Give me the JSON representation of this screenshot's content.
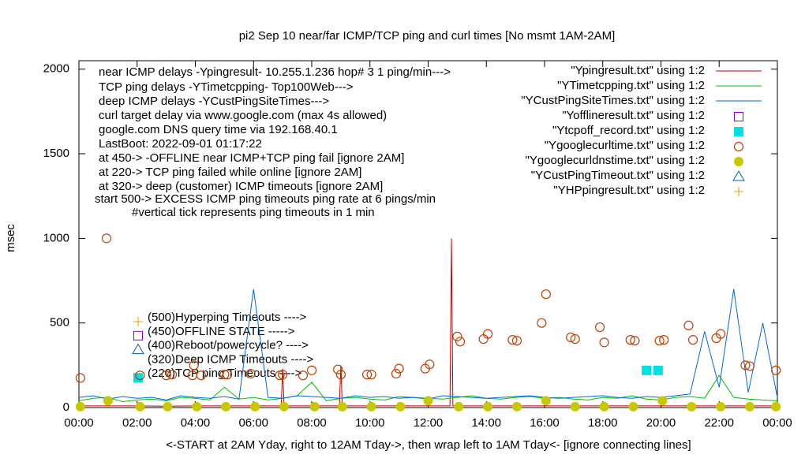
{
  "chart_data": {
    "type": "line",
    "title": "pi2 Sep 10  near/far ICMP/TCP ping and curl times [No msmt 1AM-2AM]",
    "ylabel": "msec",
    "xlabel": "<-START at 2AM Yday, right to 12AM Tday->, then wrap left to 1AM Tday<- [ignore connecting lines]",
    "xlim": [
      0,
      24
    ],
    "ylim": [
      0,
      2050
    ],
    "yticks": [
      0,
      500,
      1000,
      1500,
      2000
    ],
    "xticks": [
      {
        "value": 0,
        "label": "00:00"
      },
      {
        "value": 2,
        "label": "02:00"
      },
      {
        "value": 4,
        "label": "04:00"
      },
      {
        "value": 6,
        "label": "06:00"
      },
      {
        "value": 8,
        "label": "08:00"
      },
      {
        "value": 10,
        "label": "10:00"
      },
      {
        "value": 12,
        "label": "12:00"
      },
      {
        "value": 14,
        "label": "14:00"
      },
      {
        "value": 16,
        "label": "16:00"
      },
      {
        "value": 18,
        "label": "18:00"
      },
      {
        "value": 20,
        "label": "20:00"
      },
      {
        "value": 22,
        "label": "22:00"
      },
      {
        "value": 24,
        "label": "00:00"
      }
    ],
    "annotations": [
      "near ICMP delays -Ypingresult- 10.255.1.236 hop# 3 1 ping/min--->",
      "TCP ping delays -YTimetcpping- Top100Web--->",
      "deep ICMP delays -YCustPingSiteTimes--->",
      "curl target delay via www.google.com (max 4s allowed)",
      "google.com DNS query time via 192.168.40.1",
      "LastBoot: 2022-09-01 01:17:22",
      "at 450-> -OFFLINE near ICMP+TCP ping fail [ignore 2AM]",
      "at 220-> TCP ping failed while online [ignore 2AM]",
      "at 320-> deep (customer) ICMP timeouts [ignore 2AM]",
      "start 500-> EXCESS ICMP ping timeouts ping rate at 6 pings/min",
      "#vertical tick represents ping timeouts in 1 min"
    ],
    "key_notes": [
      {
        "label": "(500)Hyperping Timeouts ---->",
        "marker": "plus",
        "color": "#e5a000"
      },
      {
        "label": "(450)OFFLINE STATE ----->",
        "marker": "open-square",
        "color": "#9400d3"
      },
      {
        "label": "(400)Reboot/powercycle? ---->",
        "marker": "open-triangle",
        "color": "#0060ad"
      },
      {
        "label": "(320)Deep ICMP Timeouts ---->",
        "marker": "none",
        "color": "#0060ad"
      },
      {
        "label": "(220)TCP ping Timeouts ---->",
        "marker": "filled-square",
        "color": "#00e0e0"
      }
    ],
    "series": [
      {
        "name": "\"Ypingresult.txt\" using 1:2",
        "marker": "line",
        "color": "#c00000",
        "x": [
          0,
          1,
          2,
          3,
          4,
          5,
          6,
          6.95,
          7,
          7.05,
          8,
          8.95,
          9,
          9.05,
          10,
          11,
          12,
          12.75,
          12.8,
          12.85,
          13,
          14,
          15,
          16,
          17,
          18,
          19,
          20,
          21,
          22,
          23,
          24
        ],
        "values": [
          10,
          10,
          10,
          8,
          10,
          10,
          10,
          10,
          230,
          10,
          10,
          10,
          250,
          10,
          10,
          10,
          10,
          10,
          1000,
          10,
          10,
          10,
          10,
          10,
          10,
          10,
          10,
          10,
          10,
          10,
          10,
          10
        ]
      },
      {
        "name": "\"YTimetcpping.txt\" using 1:2",
        "marker": "line",
        "color": "#00c000",
        "x": [
          0,
          0.5,
          1,
          1.5,
          2,
          2.5,
          3,
          3.5,
          4,
          4.5,
          5,
          5.5,
          6,
          6.5,
          7,
          7.5,
          8,
          8.5,
          9,
          9.5,
          10,
          10.5,
          11,
          11.5,
          12,
          12.5,
          13,
          13.5,
          14,
          14.5,
          15,
          15.5,
          16,
          16.5,
          17,
          17.5,
          18,
          18.5,
          19,
          19.5,
          20,
          20.5,
          21,
          21.5,
          22,
          22.5,
          23,
          23.5,
          24
        ],
        "values": [
          40,
          55,
          60,
          35,
          45,
          50,
          40,
          60,
          55,
          45,
          120,
          50,
          60,
          45,
          55,
          70,
          150,
          40,
          55,
          60,
          50,
          45,
          65,
          60,
          55,
          50,
          60,
          70,
          55,
          50,
          60,
          65,
          55,
          60,
          50,
          45,
          60,
          55,
          70,
          50,
          45,
          60,
          65,
          55,
          190,
          60,
          50,
          45,
          40
        ]
      },
      {
        "name": "\"YCustPingSiteTimes.txt\" using 1:2",
        "marker": "line",
        "color": "#0066dd",
        "x": [
          0,
          0.5,
          1,
          1.5,
          2,
          2.5,
          3,
          3.5,
          4,
          4.5,
          5,
          5.5,
          6,
          6.5,
          7,
          7.5,
          8,
          8.5,
          9,
          9.5,
          10,
          10.5,
          11,
          11.5,
          12,
          12.5,
          13,
          13.5,
          14,
          14.5,
          15,
          15.5,
          16,
          16.5,
          17,
          17.5,
          18,
          18.5,
          19,
          19.5,
          20,
          20.5,
          21,
          21.5,
          22,
          22.5,
          23,
          23.5,
          24
        ],
        "values": [
          60,
          70,
          50,
          65,
          55,
          60,
          45,
          70,
          60,
          55,
          65,
          50,
          700,
          60,
          55,
          70,
          65,
          60,
          55,
          70,
          60,
          65,
          55,
          60,
          50,
          70,
          65,
          60,
          55,
          60,
          65,
          70,
          60,
          55,
          60,
          65,
          70,
          60,
          55,
          65,
          60,
          70,
          80,
          450,
          120,
          700,
          90,
          500,
          60
        ]
      },
      {
        "name": "\"Yofflineresult.txt\" using 1:2",
        "marker": "open-square",
        "color": "#9400d3",
        "x": [],
        "values": []
      },
      {
        "name": "\"Ytcpoff_record.txt\" using 1:2",
        "marker": "filled-square",
        "color": "#00e0e0",
        "x": [
          19.5,
          19.9
        ],
        "values": [
          220,
          220
        ]
      },
      {
        "name": "\"Ygooglecurltime.txt\" using 1:2",
        "marker": "open-circle",
        "color": "#c04000",
        "x": [
          0.05,
          0.95,
          2.1,
          3.0,
          3.2,
          3.9,
          3.95,
          4.2,
          5.0,
          5.1,
          5.9,
          6.9,
          7.0,
          7.7,
          8.0,
          8.9,
          9.0,
          9.9,
          10.05,
          10.9,
          11.0,
          11.9,
          12.05,
          13.0,
          13.1,
          13.9,
          14.05,
          14.9,
          15.05,
          15.9,
          16.05,
          16.9,
          17.05,
          17.9,
          18.05,
          18.95,
          19.1,
          19.95,
          20.1,
          20.95,
          21.1,
          21.9,
          22.05,
          22.9,
          23.05,
          23.95
        ],
        "values": [
          175,
          1000,
          190,
          190,
          195,
          190,
          250,
          190,
          195,
          195,
          200,
          190,
          195,
          190,
          220,
          225,
          195,
          195,
          195,
          200,
          230,
          230,
          255,
          420,
          390,
          405,
          435,
          400,
          395,
          500,
          670,
          415,
          405,
          475,
          385,
          400,
          395,
          395,
          400,
          485,
          400,
          410,
          435,
          250,
          245,
          220
        ]
      },
      {
        "name": "\"Ygooglecurldnstime.txt\" using 1:2",
        "marker": "filled-circle",
        "color": "#c8c800",
        "x": [
          0.05,
          1,
          2.1,
          3.05,
          4.05,
          5.05,
          6.05,
          7.05,
          8.1,
          9.05,
          10.05,
          11.05,
          12.0,
          13.05,
          14.05,
          15.05,
          16.05,
          17.05,
          18.05,
          19.05,
          20.05,
          21.05,
          22.05,
          23.05,
          23.95
        ],
        "values": [
          5,
          40,
          5,
          5,
          5,
          5,
          5,
          5,
          5,
          5,
          5,
          5,
          40,
          5,
          5,
          5,
          40,
          5,
          5,
          5,
          40,
          5,
          5,
          5,
          5
        ]
      },
      {
        "name": "\"YCustPingTimeout.txt\" using 1:2",
        "marker": "open-triangle",
        "color": "#0060ad",
        "x": [],
        "values": []
      },
      {
        "name": "\"YHPpingresult.txt\" using 1:2",
        "marker": "plus",
        "color": "#e5a000",
        "x": [],
        "values": []
      }
    ]
  }
}
